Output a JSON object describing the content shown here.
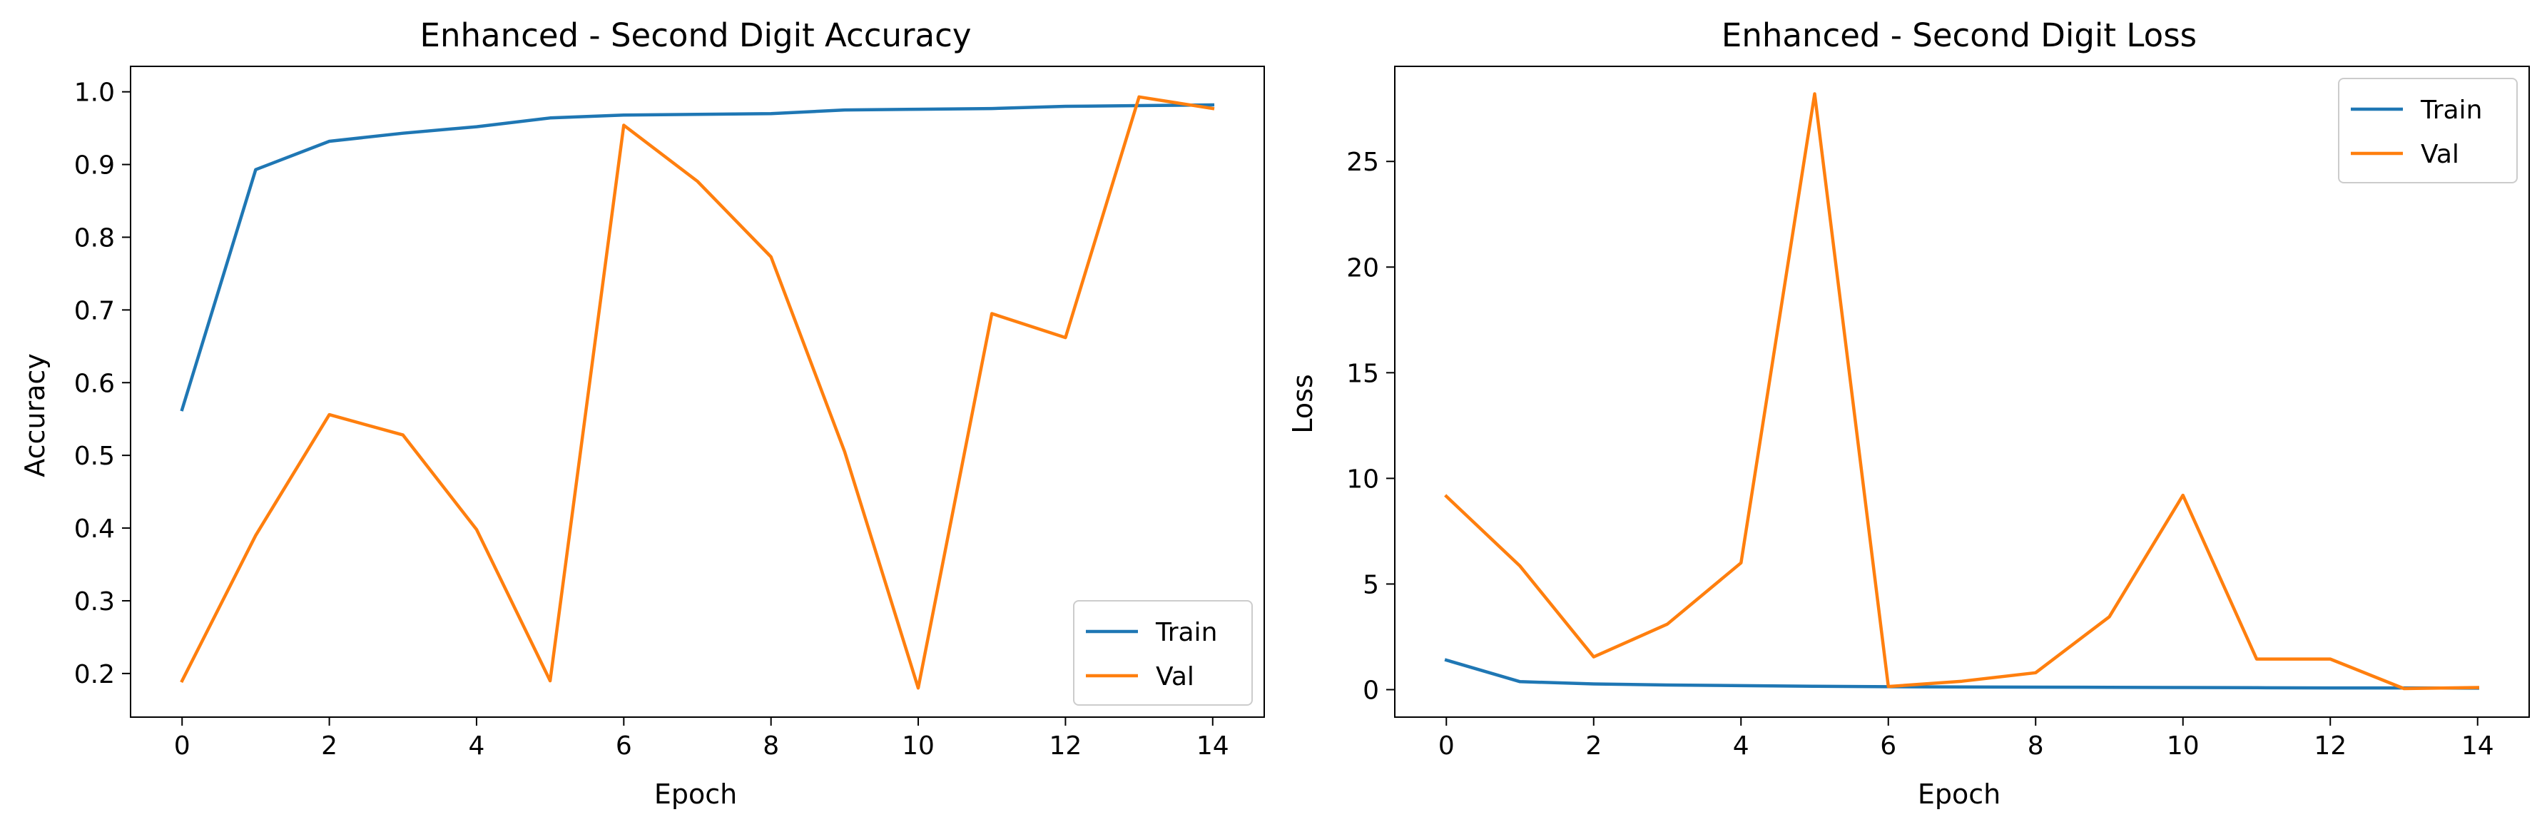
{
  "chart_data": [
    {
      "type": "line",
      "title": "Enhanced - Second Digit Accuracy",
      "xlabel": "Epoch",
      "ylabel": "Accuracy",
      "xlim": [
        -0.7,
        14.7
      ],
      "ylim": [
        0.14,
        1.035
      ],
      "xticks": [
        0,
        2,
        4,
        6,
        8,
        10,
        12,
        14
      ],
      "yticks": [
        0.2,
        0.3,
        0.4,
        0.5,
        0.6,
        0.7,
        0.8,
        0.9,
        1.0
      ],
      "ytick_labels": [
        "0.2",
        "0.3",
        "0.4",
        "0.5",
        "0.6",
        "0.7",
        "0.8",
        "0.9",
        "1.0"
      ],
      "legend": "lower-right",
      "x": [
        0,
        1,
        2,
        3,
        4,
        5,
        6,
        7,
        8,
        9,
        10,
        11,
        12,
        13,
        14
      ],
      "series": [
        {
          "name": "Train",
          "color": "#1f77b4",
          "values": [
            0.563,
            0.893,
            0.932,
            0.943,
            0.952,
            0.964,
            0.968,
            0.969,
            0.97,
            0.975,
            0.976,
            0.977,
            0.98,
            0.981,
            0.982
          ]
        },
        {
          "name": "Val",
          "color": "#ff7f0e",
          "values": [
            0.19,
            0.39,
            0.556,
            0.528,
            0.398,
            0.19,
            0.954,
            0.877,
            0.773,
            0.505,
            0.18,
            0.695,
            0.662,
            0.993,
            0.977
          ]
        }
      ]
    },
    {
      "type": "line",
      "title": "Enhanced - Second Digit Loss",
      "xlabel": "Epoch",
      "ylabel": "Loss",
      "xlim": [
        -0.7,
        14.7
      ],
      "ylim": [
        -1.3,
        29.5
      ],
      "xticks": [
        0,
        2,
        4,
        6,
        8,
        10,
        12,
        14
      ],
      "yticks": [
        0,
        5,
        10,
        15,
        20,
        25
      ],
      "ytick_labels": [
        "0",
        "5",
        "10",
        "15",
        "20",
        "25"
      ],
      "legend": "upper-right",
      "x": [
        0,
        1,
        2,
        3,
        4,
        5,
        6,
        7,
        8,
        9,
        10,
        11,
        12,
        13,
        14
      ],
      "series": [
        {
          "name": "Train",
          "color": "#1f77b4",
          "values": [
            1.4,
            0.38,
            0.27,
            0.22,
            0.19,
            0.16,
            0.14,
            0.13,
            0.12,
            0.11,
            0.1,
            0.09,
            0.08,
            0.08,
            0.07
          ]
        },
        {
          "name": "Val",
          "color": "#ff7f0e",
          "values": [
            9.15,
            5.85,
            1.55,
            3.1,
            6.0,
            28.2,
            0.15,
            0.4,
            0.8,
            3.45,
            9.2,
            1.45,
            1.45,
            0.05,
            0.1
          ]
        }
      ]
    }
  ]
}
